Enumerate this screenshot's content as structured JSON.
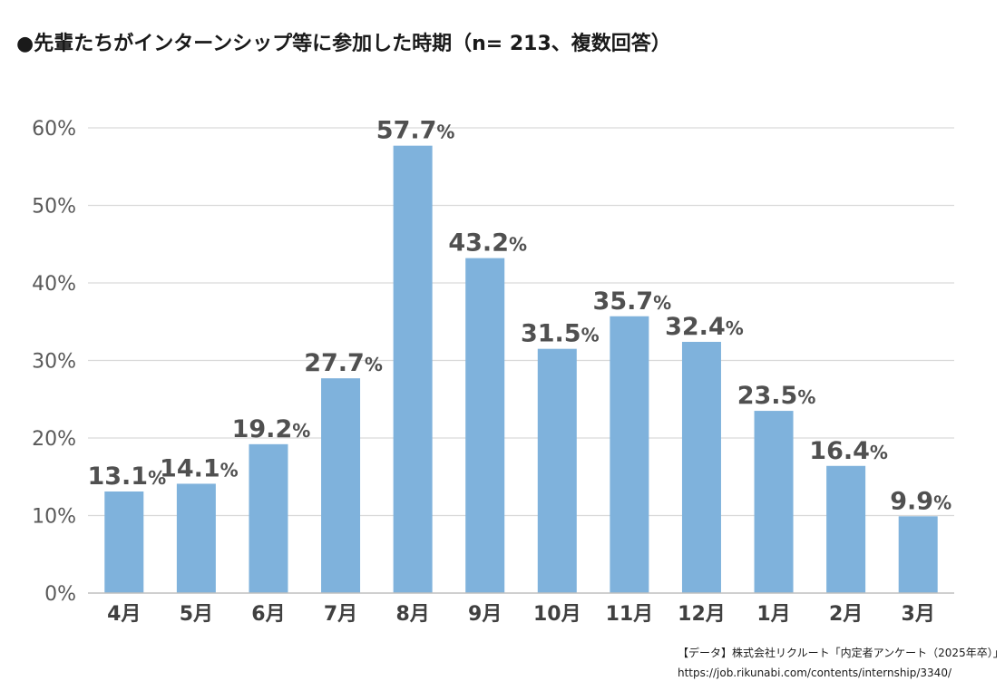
{
  "title": "●先輩たちがインターンシップ等に参加した時期（n= 213、複数回答）",
  "chart_data": {
    "type": "bar",
    "categories": [
      "4月",
      "5月",
      "6月",
      "7月",
      "8月",
      "9月",
      "10月",
      "11月",
      "12月",
      "1月",
      "2月",
      "3月"
    ],
    "values": [
      13.1,
      14.1,
      19.2,
      27.7,
      57.7,
      43.2,
      31.5,
      35.7,
      32.4,
      23.5,
      16.4,
      9.9
    ],
    "data_labels": [
      "13.1",
      "14.1",
      "19.2",
      "27.7",
      "57.7",
      "43.2",
      "31.5",
      "35.7",
      "32.4",
      "23.5",
      "16.4",
      "9.9"
    ],
    "label_suffix": "%",
    "ylim": [
      0,
      60
    ],
    "yticks": [
      0,
      10,
      20,
      30,
      40,
      50,
      60
    ],
    "ytick_labels": [
      "0%",
      "10%",
      "20%",
      "30%",
      "40%",
      "50%",
      "60%"
    ],
    "grid": true,
    "legend": "none",
    "bar_color": "#7fb2dc",
    "grid_color": "#d9d9d9",
    "axis_color": "#bfbfbf"
  },
  "source": {
    "line1": "【データ】株式会社リクルート「内定者アンケート（2025年卒）」",
    "line2": "https://job.rikunabi.com/contents/internship/3340/"
  }
}
